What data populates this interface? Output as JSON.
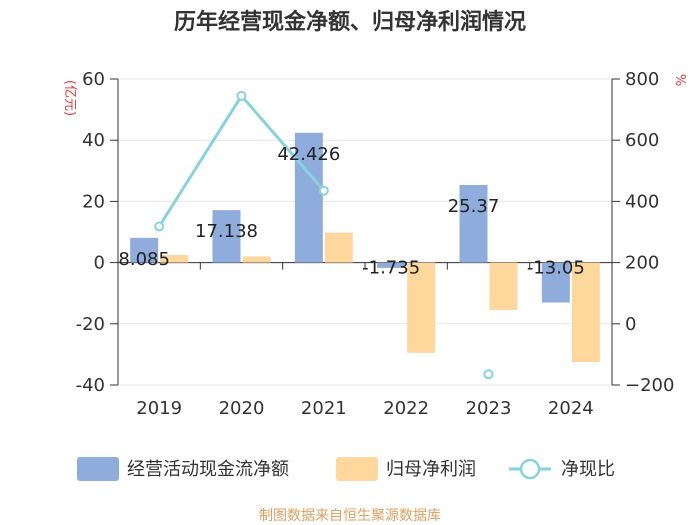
{
  "chart_data": {
    "type": "bar",
    "title": "历年经营现金净额、归母净利润情况",
    "categories": [
      "2019",
      "2020",
      "2021",
      "2022",
      "2023",
      "2024"
    ],
    "series": [
      {
        "name": "经营活动现金流净额",
        "axis": "left",
        "kind": "bar",
        "color": "#8eacdc",
        "values": [
          8.085,
          17.138,
          42.426,
          -1.735,
          25.37,
          -13.05
        ],
        "labels": [
          "8.085",
          "17.138",
          "42.426",
          "-1.735",
          "25.37",
          "-13.05"
        ]
      },
      {
        "name": "归母净利润",
        "axis": "left",
        "kind": "bar",
        "color": "#fdd79b",
        "values": [
          2.5,
          2.0,
          9.8,
          -29.5,
          -15.5,
          -32.5
        ]
      },
      {
        "name": "净现比",
        "axis": "right",
        "kind": "line",
        "color": "#86d3de",
        "values": [
          318,
          745,
          435,
          null,
          -165,
          null
        ]
      }
    ],
    "y_left": {
      "unit": "(亿元)",
      "range": [
        -40,
        60
      ],
      "ticks": [
        -40,
        -20,
        0,
        20,
        40,
        60
      ]
    },
    "y_right": {
      "unit": "%",
      "range": [
        -200,
        800
      ],
      "ticks": [
        -200,
        0,
        200,
        400,
        600,
        800
      ]
    },
    "grid": true,
    "legend": "bottom",
    "source": "制图数据来自恒生聚源数据库",
    "colors": {
      "axis": "#333333",
      "grid": "#e6e6e6",
      "unit": "#e23b3b",
      "source": "#e0a060"
    }
  }
}
